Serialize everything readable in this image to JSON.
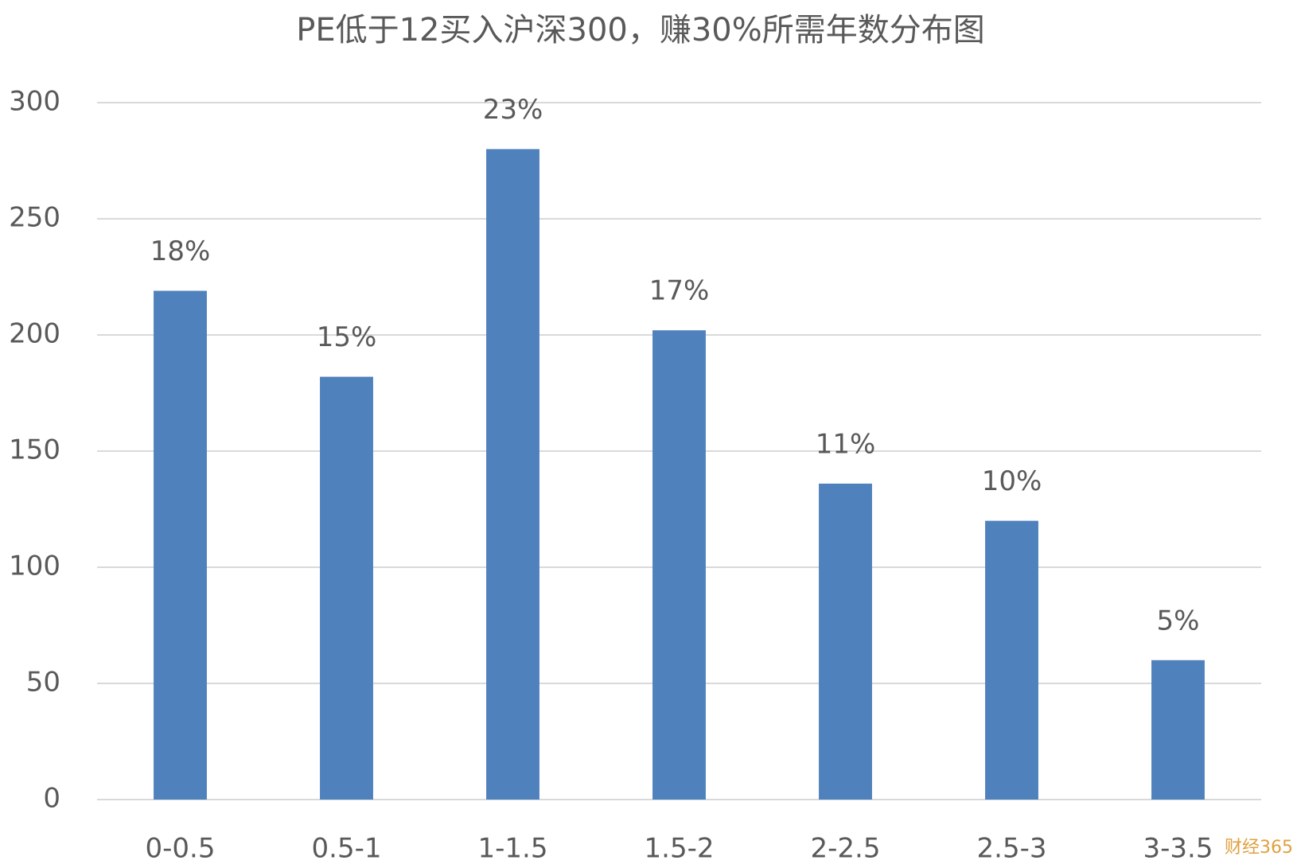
{
  "chart_data": {
    "type": "bar",
    "title": "PE低于12买入沪深300，赚30%所需年数分布图",
    "categories": [
      "0-0.5",
      "0.5-1",
      "1-1.5",
      "1.5-2",
      "2-2.5",
      "2.5-3",
      "3-3.5"
    ],
    "values": [
      219,
      182,
      280,
      202,
      136,
      120,
      60
    ],
    "share_labels": [
      "18%",
      "15%",
      "23%",
      "17%",
      "11%",
      "10%",
      "5%"
    ],
    "color": "#4f81bd",
    "ylim": [
      0,
      300
    ],
    "yticks": [
      0,
      50,
      100,
      150,
      200,
      250,
      300
    ],
    "grid": true,
    "watermark": "财经365"
  }
}
